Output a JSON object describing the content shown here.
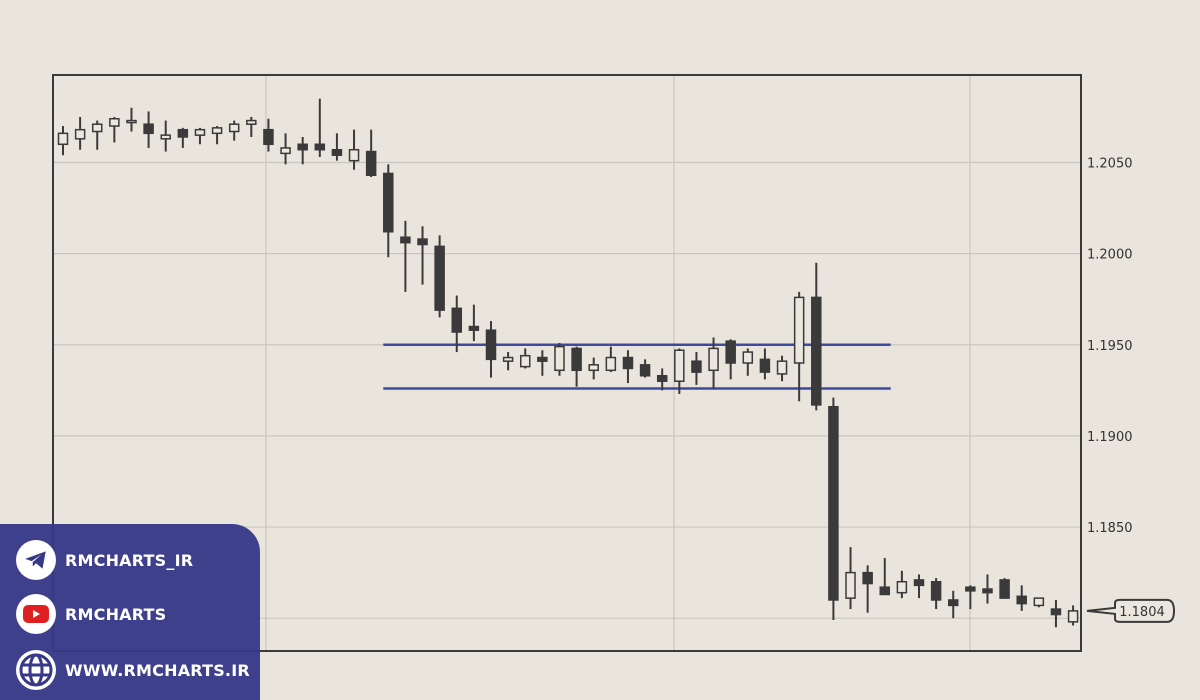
{
  "chart_data": {
    "type": "candlestick",
    "title": "",
    "xlabel": "",
    "ylabel": "",
    "ylim": [
      1.1782,
      1.2098
    ],
    "y_ticks": [
      "1.2050",
      "1.2000",
      "1.1950",
      "1.1900",
      "1.1850"
    ],
    "y_axis_position": "right",
    "grid": true,
    "ohlc_order": [
      "open",
      "high",
      "low",
      "close"
    ],
    "candles": [
      [
        1.206,
        1.207,
        1.2054,
        1.2066
      ],
      [
        1.2063,
        1.2075,
        1.2057,
        1.2068
      ],
      [
        1.2067,
        1.2073,
        1.2057,
        1.2071
      ],
      [
        1.207,
        1.2075,
        1.2061,
        1.2074
      ],
      [
        1.2072,
        1.208,
        1.2067,
        1.2073
      ],
      [
        1.2071,
        1.2078,
        1.2058,
        1.2066
      ],
      [
        1.2063,
        1.2073,
        1.2056,
        1.2065
      ],
      [
        1.2068,
        1.2069,
        1.2058,
        1.2064
      ],
      [
        1.2065,
        1.2069,
        1.206,
        1.2068
      ],
      [
        1.2066,
        1.207,
        1.206,
        1.2069
      ],
      [
        1.2067,
        1.2073,
        1.2062,
        1.2071
      ],
      [
        1.2071,
        1.2075,
        1.2064,
        1.2073
      ],
      [
        1.2068,
        1.2074,
        1.2056,
        1.206
      ],
      [
        1.2055,
        1.2066,
        1.2049,
        1.2058
      ],
      [
        1.206,
        1.2064,
        1.2049,
        1.2057
      ],
      [
        1.206,
        1.2085,
        1.2053,
        1.2057
      ],
      [
        1.2057,
        1.2066,
        1.2051,
        1.2054
      ],
      [
        1.2051,
        1.2068,
        1.2046,
        1.2057
      ],
      [
        1.2056,
        1.2068,
        1.2042,
        1.2043
      ],
      [
        1.2044,
        1.2049,
        1.1998,
        1.2012
      ],
      [
        1.2009,
        1.2018,
        1.1979,
        1.2006
      ],
      [
        1.2008,
        1.2015,
        1.1983,
        1.2005
      ],
      [
        1.2004,
        1.201,
        1.1965,
        1.1969
      ],
      [
        1.197,
        1.1977,
        1.1946,
        1.1957
      ],
      [
        1.196,
        1.1972,
        1.1952,
        1.1958
      ],
      [
        1.1958,
        1.1963,
        1.1932,
        1.1942
      ],
      [
        1.1941,
        1.1946,
        1.1936,
        1.1943
      ],
      [
        1.1938,
        1.1948,
        1.1937,
        1.1944
      ],
      [
        1.1943,
        1.1947,
        1.1933,
        1.1941
      ],
      [
        1.1936,
        1.1951,
        1.1933,
        1.1949
      ],
      [
        1.1948,
        1.1949,
        1.1927,
        1.1936
      ],
      [
        1.1936,
        1.1943,
        1.1931,
        1.1939
      ],
      [
        1.1936,
        1.1949,
        1.1935,
        1.1943
      ],
      [
        1.1943,
        1.1947,
        1.1929,
        1.1937
      ],
      [
        1.1939,
        1.1942,
        1.1932,
        1.1933
      ],
      [
        1.1933,
        1.1937,
        1.1925,
        1.193
      ],
      [
        1.193,
        1.1948,
        1.1923,
        1.1947
      ],
      [
        1.1941,
        1.1946,
        1.1928,
        1.1935
      ],
      [
        1.1936,
        1.1954,
        1.1926,
        1.1948
      ],
      [
        1.1952,
        1.1953,
        1.1931,
        1.194
      ],
      [
        1.194,
        1.1948,
        1.1933,
        1.1946
      ],
      [
        1.1942,
        1.1948,
        1.1931,
        1.1935
      ],
      [
        1.1934,
        1.1944,
        1.193,
        1.1941
      ],
      [
        1.194,
        1.1979,
        1.1919,
        1.1976
      ],
      [
        1.1976,
        1.1995,
        1.1914,
        1.1917
      ],
      [
        1.1916,
        1.1921,
        1.1799,
        1.181
      ],
      [
        1.1811,
        1.1839,
        1.1805,
        1.1825
      ],
      [
        1.1825,
        1.1829,
        1.1803,
        1.1819
      ],
      [
        1.1817,
        1.1833,
        1.1813,
        1.1813
      ],
      [
        1.1814,
        1.1826,
        1.1811,
        1.182
      ],
      [
        1.1821,
        1.1824,
        1.1811,
        1.1818
      ],
      [
        1.182,
        1.1822,
        1.1805,
        1.181
      ],
      [
        1.181,
        1.1815,
        1.18,
        1.1807
      ],
      [
        1.1817,
        1.1818,
        1.1805,
        1.1815
      ],
      [
        1.1816,
        1.1824,
        1.1808,
        1.1814
      ],
      [
        1.1821,
        1.1822,
        1.1811,
        1.1811
      ],
      [
        1.1812,
        1.1818,
        1.1804,
        1.1808
      ],
      [
        1.1807,
        1.1811,
        1.1806,
        1.1811
      ],
      [
        1.1805,
        1.181,
        1.1795,
        1.1802
      ],
      [
        1.1798,
        1.1807,
        1.1796,
        1.1804
      ]
    ],
    "range_lines": [
      {
        "price": 1.195,
        "from_candle": 19,
        "to_candle": 48
      },
      {
        "price": 1.1926,
        "from_candle": 19,
        "to_candle": 48
      }
    ],
    "last_price_label": "1.1804",
    "colors": {
      "background": "#e9e5dd",
      "bull_body": "#ebe7df",
      "bear_body": "#3a3a3a",
      "candle_outline": "#3a3a3a",
      "range_line": "#3d4a9e",
      "grid": "#c9c6bf",
      "frame": "#3a3a3a"
    }
  },
  "footer": {
    "telegram": "RMCHARTS_IR",
    "youtube": "RMCHARTS",
    "website": "WWW.RMCHARTS.IR",
    "panel_color": "#373988"
  }
}
